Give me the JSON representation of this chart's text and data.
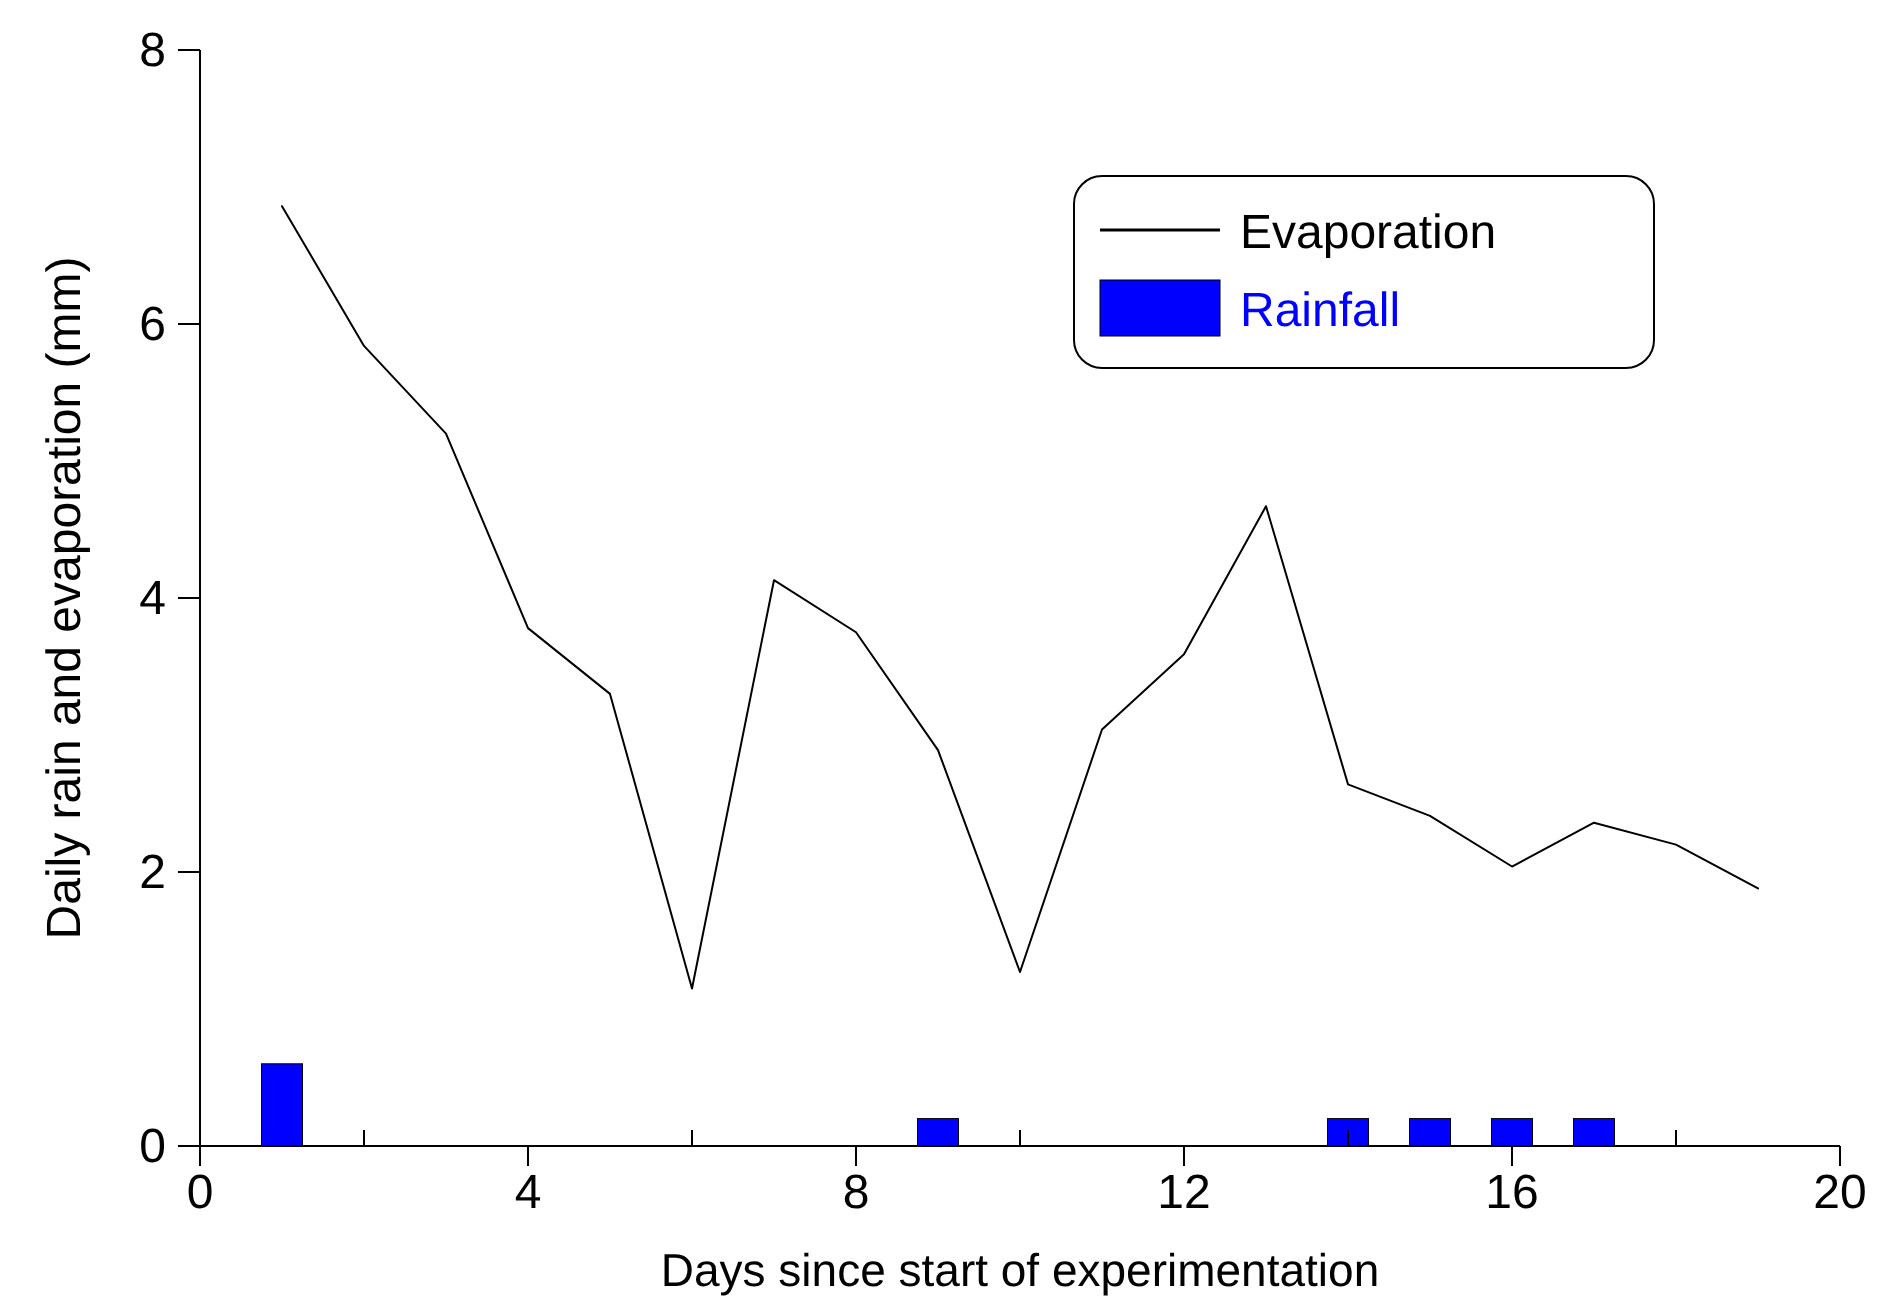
{
  "chart_data": {
    "type": "line",
    "xlabel": "Days since start of experimentation",
    "ylabel": "Daily rain and evaporation (mm)",
    "xlim": [
      0,
      20
    ],
    "xticks": [
      0,
      {
        "value": 2,
        "label": null
      },
      4,
      {
        "value": 6,
        "label": null
      },
      8,
      {
        "value": 10,
        "label": null
      },
      12,
      {
        "value": 14,
        "label": null
      },
      16,
      {
        "value": 18,
        "label": null
      },
      20
    ],
    "ylim": [
      0,
      8
    ],
    "yticks": [
      0,
      2,
      4,
      6,
      8
    ],
    "legend": "top right",
    "grid": false,
    "series": [
      {
        "name": "Evaporation",
        "color": "#000000",
        "x": [
          1,
          2,
          3,
          4,
          5,
          6,
          7,
          8,
          9,
          10,
          11,
          12,
          13,
          14,
          15,
          16,
          17,
          18,
          19
        ],
        "values": [
          6.86,
          5.84,
          5.2,
          3.78,
          3.3,
          1.15,
          4.13,
          3.75,
          2.89,
          1.27,
          3.04,
          3.59,
          4.67,
          2.64,
          2.41,
          2.04,
          2.36,
          2.2,
          1.88
        ]
      },
      {
        "name": "Rainfall",
        "type": "bar",
        "color": "#0000ff",
        "x": [
          1,
          9,
          14,
          15,
          16,
          17
        ],
        "values": [
          0.6,
          0.2,
          0.2,
          0.2,
          0.2,
          0.2
        ]
      }
    ]
  }
}
